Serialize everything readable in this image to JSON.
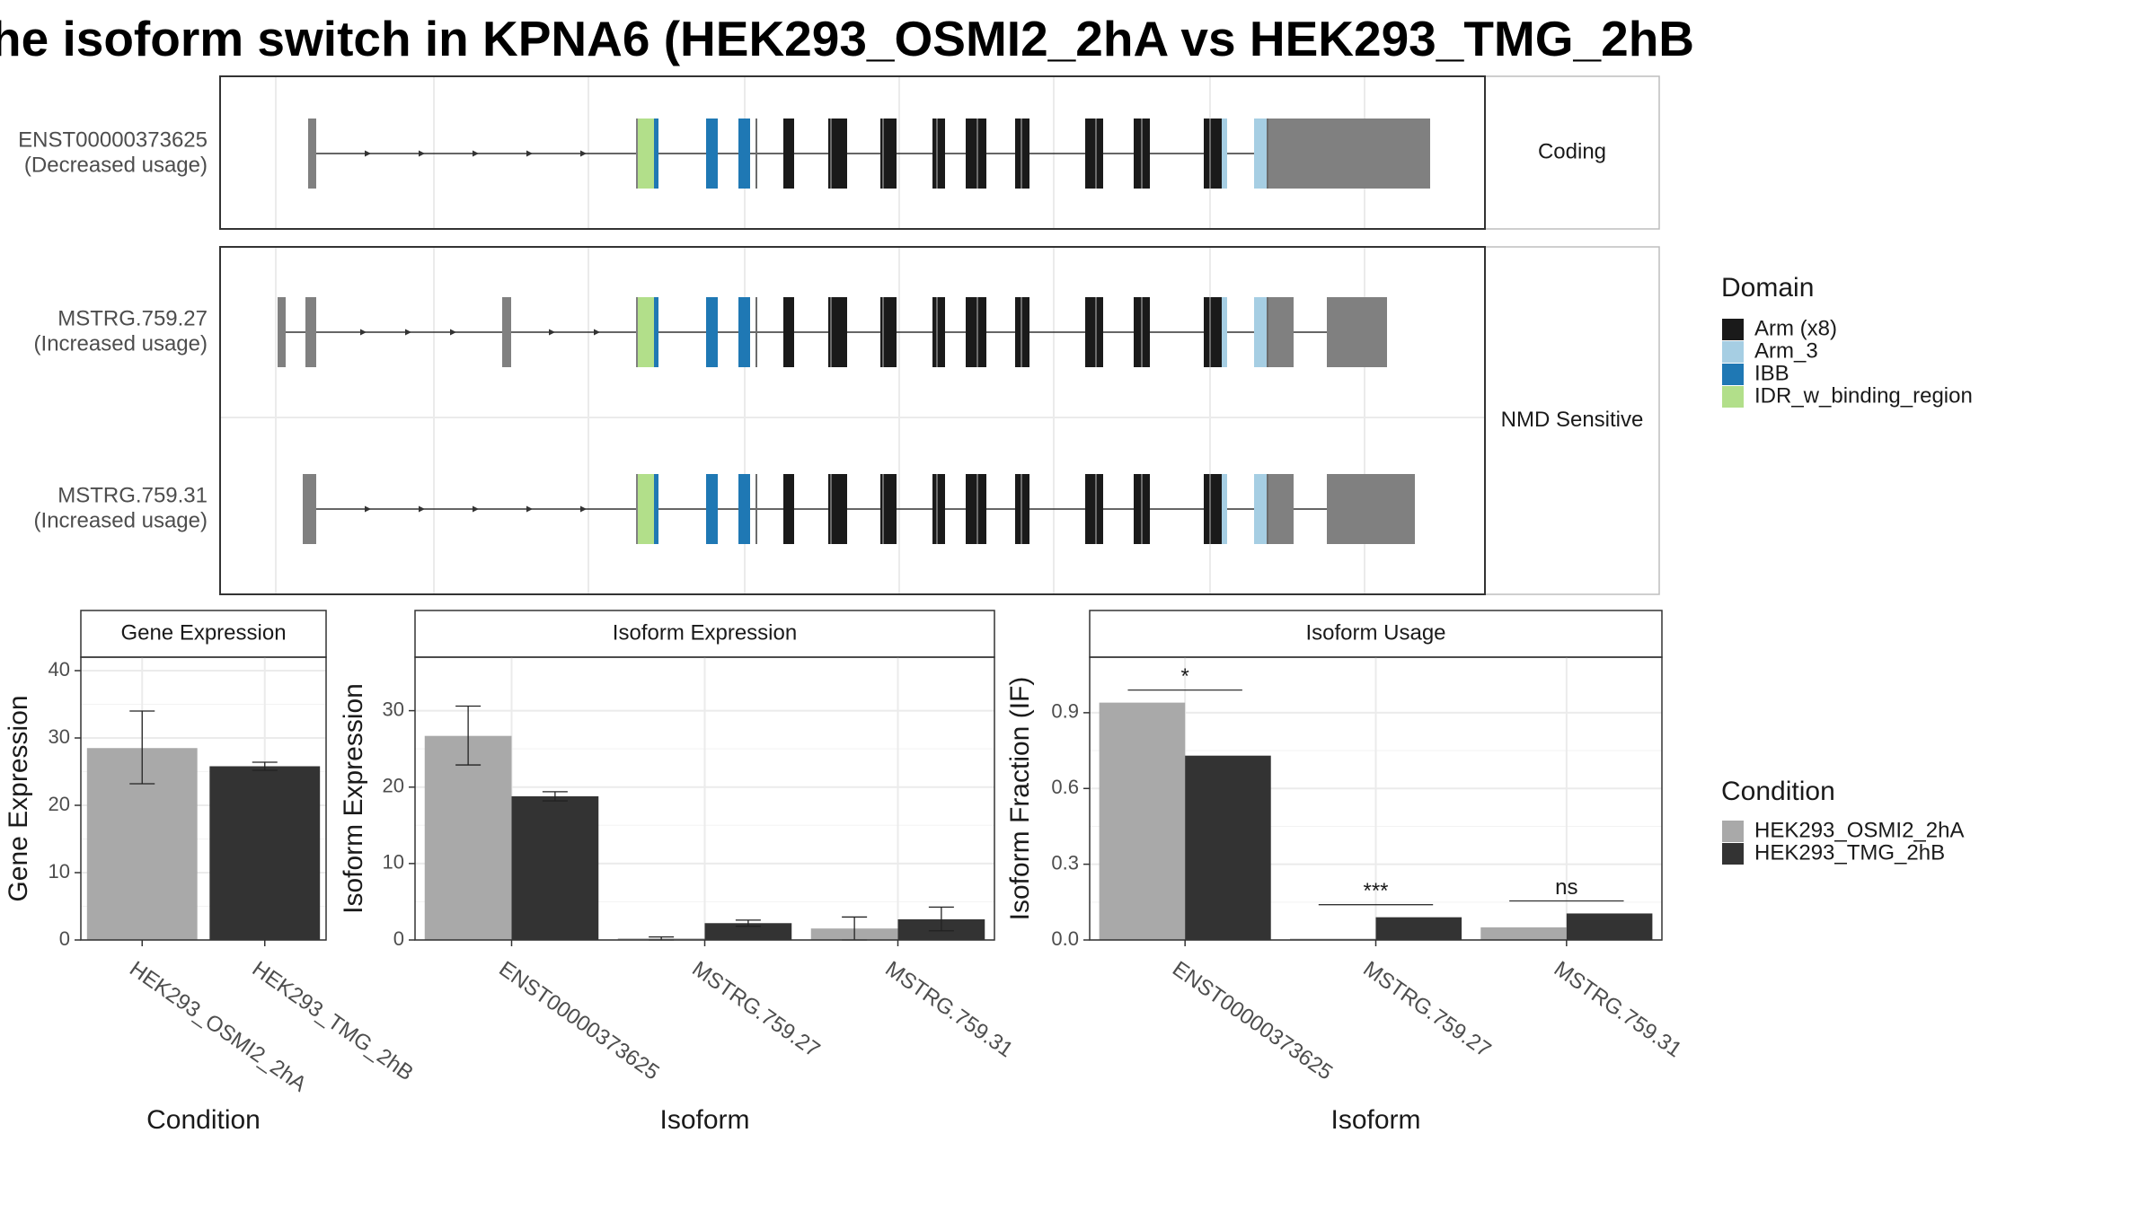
{
  "title": "he isoform switch in KPNA6 (HEK293_OSMI2_2hA vs HEK293_TMG_2hB",
  "colors": {
    "arm_x8": "#1a1a1a",
    "arm_3": "#a6cee3",
    "ibb": "#1f78b4",
    "idr": "#b2df8a",
    "utr": "#808080",
    "cond_a": "#a9a9a9",
    "cond_b": "#333333"
  },
  "chart_data": [
    {
      "type": "structure",
      "panels": [
        "Coding",
        "NMD Sensitive"
      ],
      "isoforms": [
        {
          "name": "ENST00000373625",
          "usage": "(Decreased usage)",
          "group": "Coding"
        },
        {
          "name": "MSTRG.759.27",
          "usage": "(Increased usage)",
          "group": "NMD Sensitive"
        },
        {
          "name": "MSTRG.759.31",
          "usage": "(Increased usage)",
          "group": "NMD Sensitive"
        }
      ],
      "legend": {
        "title": "Domain",
        "entries": [
          "Arm (x8)",
          "Arm_3",
          "IBB",
          "IDR_w_binding_region"
        ]
      }
    },
    {
      "type": "bar",
      "title": "Gene Expression",
      "xlabel": "Condition",
      "ylabel": "Gene Expression",
      "categories": [
        "HEK293_OSMI2_2hA",
        "HEK293_TMG_2hB"
      ],
      "values": [
        28.5,
        25.8
      ],
      "errors": [
        [
          23.2,
          34.0
        ],
        [
          25.2,
          26.4
        ]
      ],
      "ylim": [
        0,
        42
      ],
      "yticks": [
        0,
        10,
        20,
        30,
        40
      ]
    },
    {
      "type": "bar",
      "title": "Isoform Expression",
      "xlabel": "Isoform",
      "ylabel": "Isoform Expression",
      "categories": [
        "ENST00000373625",
        "MSTRG.759.27",
        "MSTRG.759.31"
      ],
      "series": [
        {
          "name": "HEK293_OSMI2_2hA",
          "values": [
            26.7,
            0.2,
            1.5
          ],
          "errors": [
            [
              22.9,
              30.6
            ],
            [
              0.0,
              0.4
            ],
            [
              0.0,
              3.0
            ]
          ]
        },
        {
          "name": "HEK293_TMG_2hB",
          "values": [
            18.8,
            2.2,
            2.7
          ],
          "errors": [
            [
              18.2,
              19.4
            ],
            [
              1.8,
              2.6
            ],
            [
              1.2,
              4.3
            ]
          ]
        }
      ],
      "ylim": [
        0,
        37
      ],
      "yticks": [
        0,
        10,
        20,
        30
      ]
    },
    {
      "type": "bar",
      "title": "Isoform Usage",
      "xlabel": "Isoform",
      "ylabel": "Isoform Fraction (IF)",
      "categories": [
        "ENST00000373625",
        "MSTRG.759.27",
        "MSTRG.759.31"
      ],
      "series": [
        {
          "name": "HEK293_OSMI2_2hA",
          "values": [
            0.94,
            0.005,
            0.05
          ]
        },
        {
          "name": "HEK293_TMG_2hB",
          "values": [
            0.73,
            0.09,
            0.105
          ]
        }
      ],
      "significance": [
        "*",
        "***",
        "ns"
      ],
      "ylim": [
        0,
        1.12
      ],
      "yticks": [
        0.0,
        0.3,
        0.6,
        0.9
      ],
      "ytick_labels": [
        "0.0",
        "0.3",
        "0.6",
        "0.9"
      ]
    }
  ],
  "condition_legend": {
    "title": "Condition",
    "entries": [
      "HEK293_OSMI2_2hA",
      "HEK293_TMG_2hB"
    ]
  }
}
